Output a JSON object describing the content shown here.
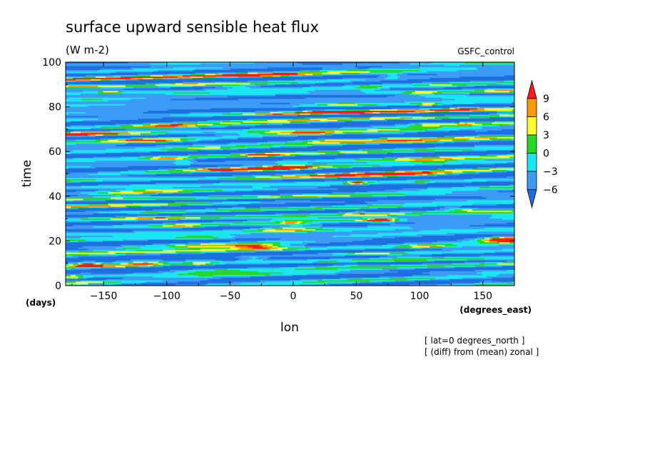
{
  "chart_data": {
    "type": "heatmap",
    "title": "surface upward sensible heat flux",
    "units": "(W m-2)",
    "dataset": "GSFC_control",
    "xlabel": "lon",
    "xunits": "(degrees_east)",
    "ylabel": "time",
    "yunits": "(days)",
    "xlim": [
      -180,
      175
    ],
    "ylim": [
      0,
      100
    ],
    "xticks": [
      -150,
      -100,
      -50,
      0,
      50,
      100,
      150
    ],
    "yticks": [
      0,
      20,
      40,
      60,
      80,
      100
    ],
    "colorbar": {
      "levels": [
        -6,
        -3,
        0,
        3,
        6,
        9
      ],
      "level_labels": [
        "−6",
        "−3",
        "0",
        "3",
        "6",
        "9"
      ],
      "colors": [
        "#1e6fe0",
        "#3c9cf5",
        "#19e6f0",
        "#26d926",
        "#ffff33",
        "#ff9900",
        "#ff1a1a"
      ],
      "extend": "both"
    },
    "notes": [
      "[ lat=0 degrees_north ]",
      "[ (diff) from (mean) zonal ]"
    ]
  }
}
